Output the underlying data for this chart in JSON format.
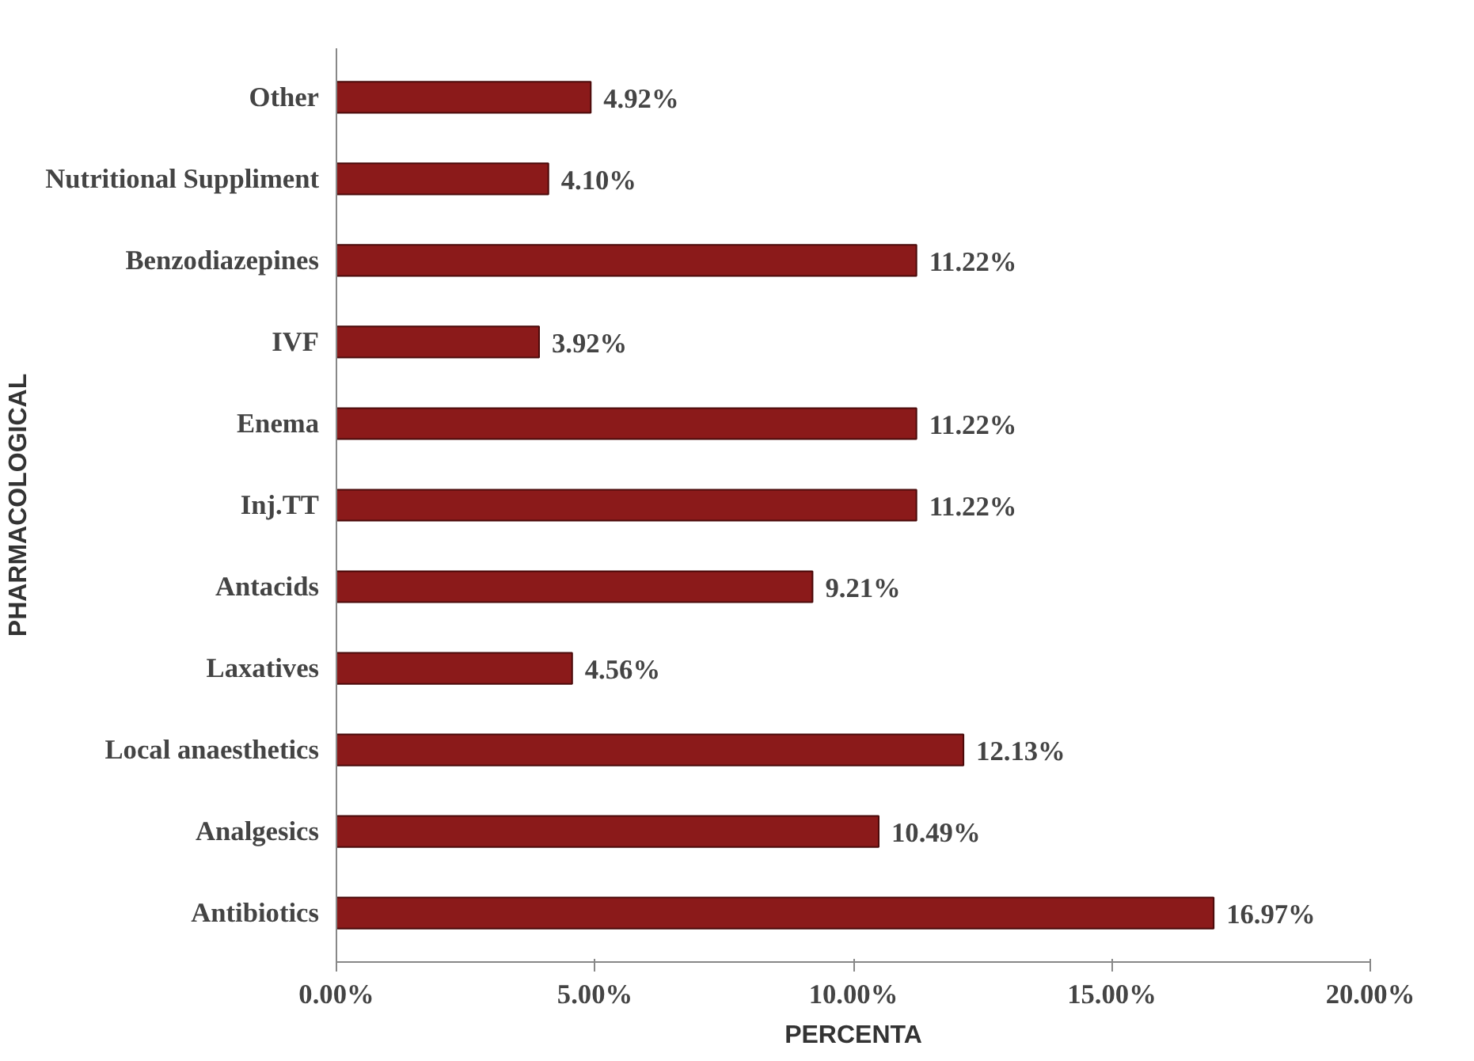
{
  "chart_data": {
    "type": "bar",
    "orientation": "horizontal",
    "xlabel": "PERCENTA",
    "ylabel": "PHARMACOLOGICAL",
    "categories": [
      "Other",
      "Nutritional Suppliment",
      "Benzodiazepines",
      "IVF",
      "Enema",
      "Inj.TT",
      "Antacids",
      "Laxatives",
      "Local anaesthetics",
      "Analgesics",
      "Antibiotics"
    ],
    "values": [
      4.92,
      4.1,
      11.22,
      3.92,
      11.22,
      11.22,
      9.21,
      4.56,
      12.13,
      10.49,
      16.97
    ],
    "value_labels": [
      "4.92%",
      "4.10%",
      "11.22%",
      "3.92%",
      "11.22%",
      "11.22%",
      "9.21%",
      "4.56%",
      "12.13%",
      "10.49%",
      "16.97%"
    ],
    "color": "#8b1a1a",
    "xlim": [
      0,
      20
    ],
    "xticks": [
      {
        "value": 0,
        "label": "0.00%"
      },
      {
        "value": 5,
        "label": "5.00%"
      },
      {
        "value": 10,
        "label": "10.00%"
      },
      {
        "value": 15,
        "label": "15.00%"
      },
      {
        "value": 20,
        "label": "20.00%"
      }
    ],
    "grid": false
  }
}
